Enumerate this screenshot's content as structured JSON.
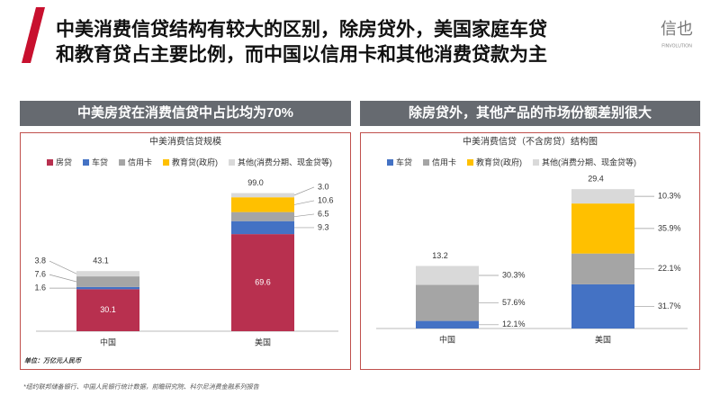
{
  "header": {
    "title_lines": [
      "中美消费信贷结构有较大的区别，除房贷外，美国家庭车贷",
      "和教育贷占主要比例，而中国以信用卡和其他消费贷款为主"
    ],
    "logo": "信也",
    "logo_sub": "FINVOLUTION"
  },
  "sections": [
    "中美房贷在消费信贷中占比均为70%",
    "除房贷外，其他产品的市场份额差别很大"
  ],
  "footnote": "*纽约联邦储备银行、中国人民银行统计数据，前瞻研究院、科尔尼消费金融系列报告",
  "chart_data": [
    {
      "type": "bar",
      "stacked": "absolute",
      "title": "中美消费信贷规模",
      "unit": "单位：万亿元人民币",
      "categories": [
        "中国",
        "美国"
      ],
      "ylim": [
        0,
        100
      ],
      "series": [
        {
          "name": "房贷",
          "color": "#b8304f",
          "values": [
            30.1,
            69.6
          ],
          "value_labels": [
            "30.1",
            "69.6"
          ]
        },
        {
          "name": "车贷",
          "color": "#4472c4",
          "values": [
            1.6,
            9.3
          ],
          "value_labels": [
            "1.6",
            "9.3"
          ]
        },
        {
          "name": "信用卡",
          "color": "#a5a5a5",
          "values": [
            7.6,
            6.5
          ],
          "value_labels": [
            "7.6",
            "6.5"
          ]
        },
        {
          "name": "教育贷(政府)",
          "color": "#ffc000",
          "values": [
            null,
            10.6
          ],
          "value_labels": [
            null,
            "10.6"
          ]
        },
        {
          "name": "其他(消费分期、现金贷等)",
          "color": "#d9d9d9",
          "values": [
            3.8,
            3
          ],
          "value_labels": [
            "3.8",
            "3.0"
          ]
        }
      ],
      "totals": [
        43.1,
        99
      ],
      "total_labels": [
        "43.1",
        "99.0"
      ]
    },
    {
      "type": "bar",
      "stacked": "percent",
      "title": "中美消费信贷（不含房贷）结构图",
      "categories": [
        "中国",
        "美国"
      ],
      "ylim": [
        0,
        30
      ],
      "series": [
        {
          "name": "车贷",
          "color": "#4472c4",
          "values": [
            12.1,
            31.7
          ],
          "value_labels": [
            "12.1%",
            "31.7%"
          ]
        },
        {
          "name": "信用卡",
          "color": "#a5a5a5",
          "values": [
            57.6,
            22.1
          ],
          "value_labels": [
            "57.6%",
            "22.1%"
          ]
        },
        {
          "name": "教育贷(政府)",
          "color": "#ffc000",
          "values": [
            null,
            35.9
          ],
          "value_labels": [
            null,
            "35.9%"
          ]
        },
        {
          "name": "其他(消费分期、现金贷等)",
          "color": "#d9d9d9",
          "values": [
            30.3,
            10.3
          ],
          "value_labels": [
            "30.3%",
            "10.3%"
          ]
        }
      ],
      "totals": [
        13.2,
        29.4
      ]
    }
  ]
}
